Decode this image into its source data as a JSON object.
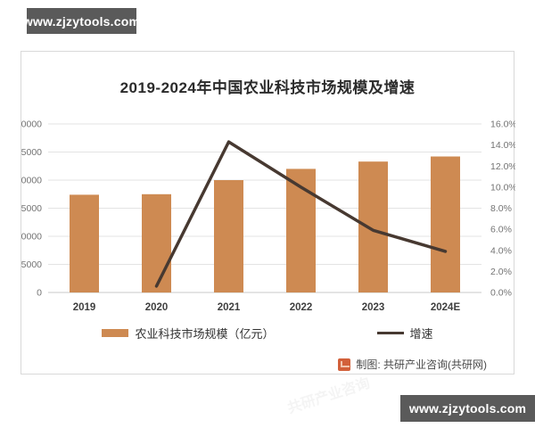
{
  "badges": {
    "site_url": "www.zjzytools.com"
  },
  "watermark_text": "共研产业咨询",
  "chart": {
    "footer": {
      "credit": "制图: 共研产业咨询(共研网)",
      "logo": "gongyan-logo"
    }
  },
  "chart_data": {
    "type": "bar",
    "title": "2019-2024年中国农业科技市场规模及增速",
    "categories": [
      "2019",
      "2020",
      "2021",
      "2022",
      "2023",
      "2024E"
    ],
    "series": [
      {
        "name": "农业科技市场规模（亿元）",
        "type": "bar",
        "values": [
          17400,
          17500,
          20000,
          22000,
          23300,
          24200
        ],
        "axis": "left"
      },
      {
        "name": "增速",
        "type": "line",
        "values": [
          null,
          0.6,
          14.3,
          10.0,
          5.9,
          3.9
        ],
        "axis": "right"
      }
    ],
    "left_axis": {
      "min": 0,
      "max": 30000,
      "step": 5000
    },
    "right_axis": {
      "min": 0,
      "max": 16,
      "step": 2,
      "unit": "%"
    },
    "grid": true,
    "legend_position": "bottom",
    "colors": {
      "bar": "#ce8a52",
      "line": "#473931",
      "grid": "#e3e3e3",
      "axis_text": "#737373"
    }
  }
}
